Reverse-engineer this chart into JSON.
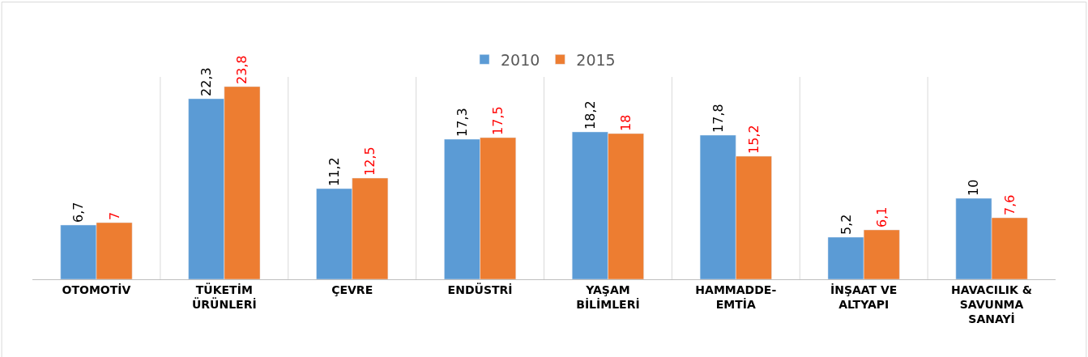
{
  "chart_data": {
    "type": "bar",
    "categories": [
      "OTOMOTİV",
      "TÜKETİM\nÜRÜNLERİ",
      "ÇEVRE",
      "ENDÜSTRİ",
      "YAŞAM\nBİLİMLERİ",
      "HAMMADDE-\nEMTİA",
      "İNŞAAT VE\nALTYAPI",
      "HAVACILIK &\nSAVUNMA\nSANAYİ"
    ],
    "series": [
      {
        "name": "2010",
        "color": "#5b9bd5",
        "values": [
          6.7,
          22.3,
          11.2,
          17.3,
          18.2,
          17.8,
          5.2,
          10
        ],
        "value_labels": [
          "6,7",
          "22,3",
          "11,2",
          "17,3",
          "18,2",
          "17,8",
          "5,2",
          "10"
        ]
      },
      {
        "name": "2015",
        "color": "#ed7d31",
        "values": [
          7,
          23.8,
          12.5,
          17.5,
          18,
          15.2,
          6.1,
          7.6
        ],
        "value_labels": [
          "7",
          "23,8",
          "12,5",
          "17,5",
          "18",
          "15,2",
          "6,1",
          "7,6"
        ]
      }
    ],
    "legend": "top",
    "grid": "x",
    "tick_labels": "x"
  }
}
